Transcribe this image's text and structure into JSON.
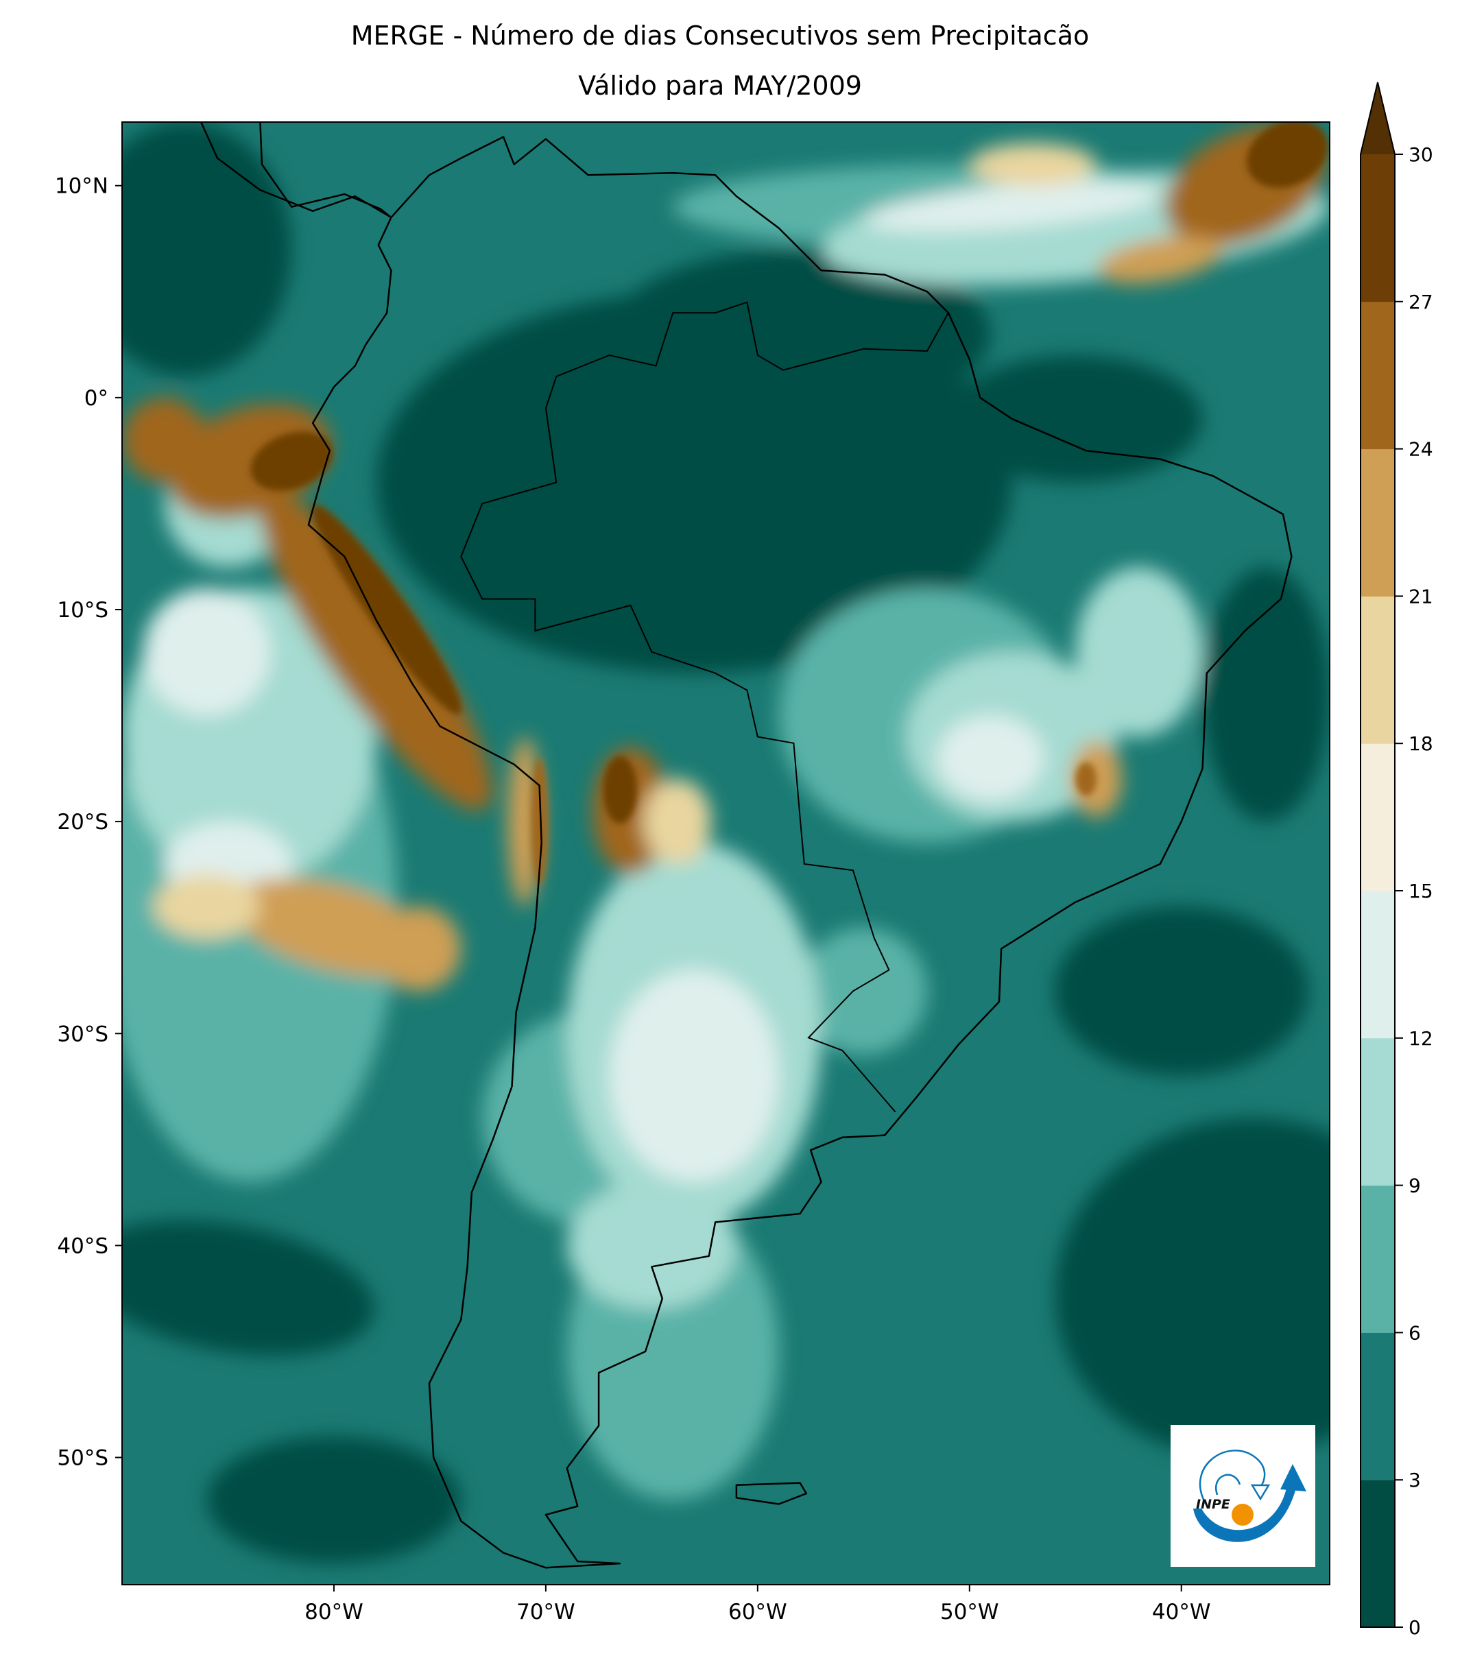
{
  "title": {
    "line1": "MERGE - Número de dias Consecutivos sem Precipitacão",
    "line2": "Válido para MAY/2009"
  },
  "map": {
    "extent": {
      "lon": [
        -90,
        -33
      ],
      "lat": [
        -56,
        13
      ]
    },
    "x_ticks": [
      {
        "lon": -80,
        "label": "80°W"
      },
      {
        "lon": -70,
        "label": "70°W"
      },
      {
        "lon": -60,
        "label": "60°W"
      },
      {
        "lon": -50,
        "label": "50°W"
      },
      {
        "lon": -40,
        "label": "40°W"
      }
    ],
    "y_ticks": [
      {
        "lat": 10,
        "label": "10°N"
      },
      {
        "lat": 0,
        "label": "0°"
      },
      {
        "lat": -10,
        "label": "10°S"
      },
      {
        "lat": -20,
        "label": "20°S"
      },
      {
        "lat": -30,
        "label": "30°S"
      },
      {
        "lat": -40,
        "label": "40°S"
      },
      {
        "lat": -50,
        "label": "50°S"
      }
    ],
    "logo_text": "INPE"
  },
  "colorbar": {
    "levels": [
      0,
      3,
      6,
      9,
      12,
      15,
      18,
      21,
      24,
      27,
      30
    ],
    "labels": [
      "0",
      "3",
      "6",
      "9",
      "12",
      "15",
      "18",
      "21",
      "24",
      "27",
      "30"
    ],
    "colors": [
      "#014d44",
      "#1b7b74",
      "#5ab2a7",
      "#a5dbd2",
      "#dfefec",
      "#f5eedc",
      "#e9d59f",
      "#cf9f55",
      "#a0661c",
      "#6d3f06"
    ],
    "extend_max_color": "#543005",
    "extend": "max"
  }
}
